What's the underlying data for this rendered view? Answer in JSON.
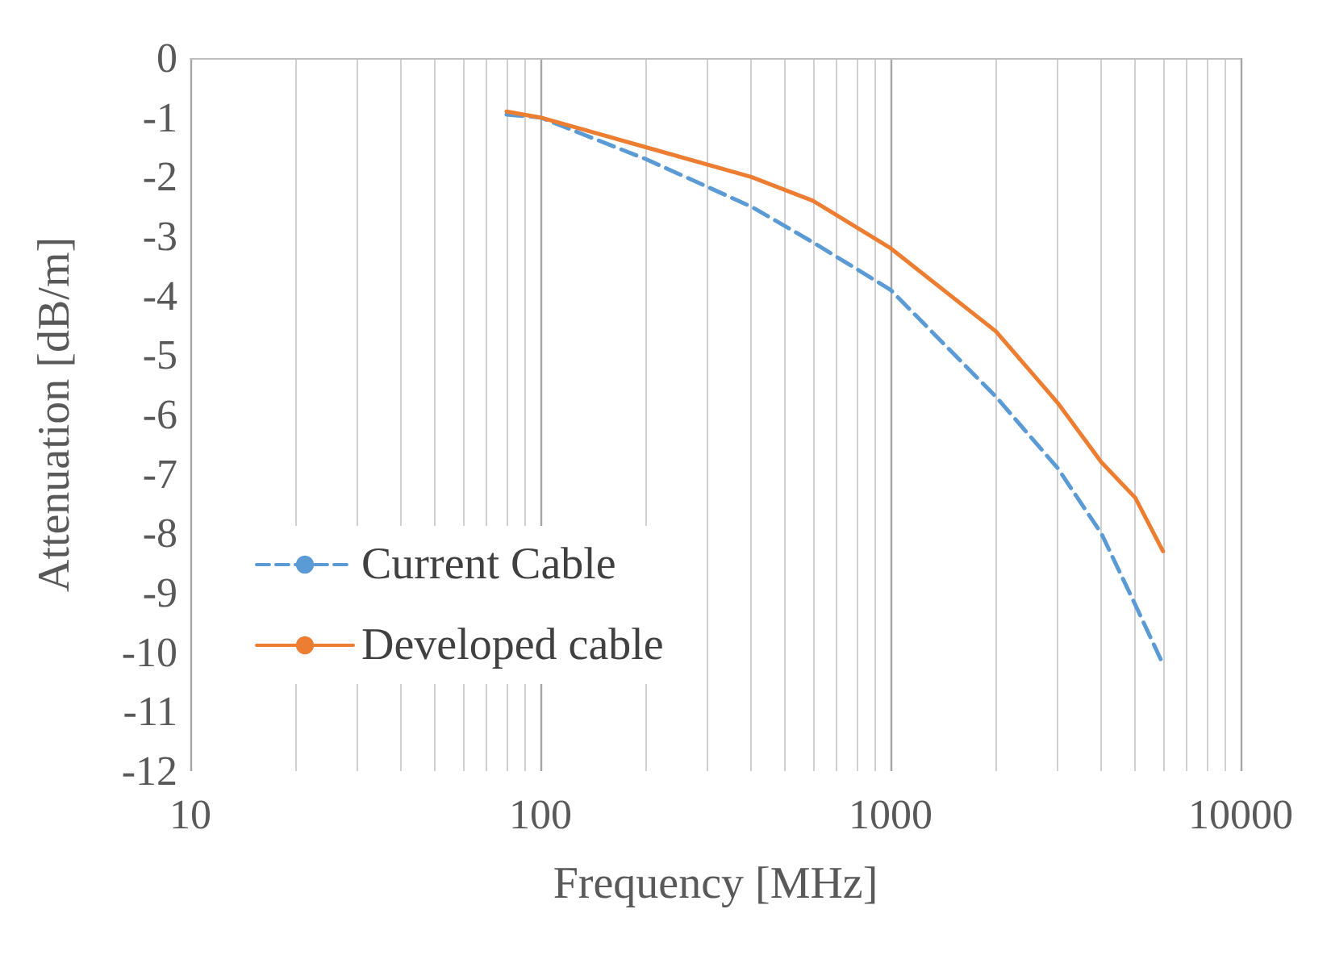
{
  "chart_data": {
    "type": "line",
    "xlabel": "Frequency [MHz]",
    "ylabel": "Attenuation [dB/m]",
    "x": [
      80,
      100,
      200,
      400,
      600,
      1000,
      2000,
      3000,
      4000,
      5000,
      6000
    ],
    "series": [
      {
        "name": "Current Cable",
        "color": "#5b9bd5",
        "line_style": "dashed",
        "values": [
          -0.95,
          -1.0,
          -1.7,
          -2.5,
          -3.1,
          -3.9,
          -5.7,
          -6.9,
          -8.0,
          -9.2,
          -10.2
        ]
      },
      {
        "name": "Developed cable",
        "color": "#ed7d31",
        "line_style": "solid",
        "values": [
          -0.9,
          -1.0,
          -1.5,
          -2.0,
          -2.4,
          -3.2,
          -4.6,
          -5.8,
          -6.8,
          -7.4,
          -8.3
        ]
      }
    ],
    "log": "x",
    "xlim": [
      10,
      10000
    ],
    "xticks": [
      10,
      100,
      1000,
      10000
    ],
    "ylim": [
      -12,
      0
    ],
    "yticks": [
      -12,
      -11,
      -10,
      -9,
      -8,
      -7,
      -6,
      -5,
      -4,
      -3,
      -2,
      -1,
      0
    ],
    "grid": "x",
    "legend": "bottom left",
    "marker": "none"
  }
}
